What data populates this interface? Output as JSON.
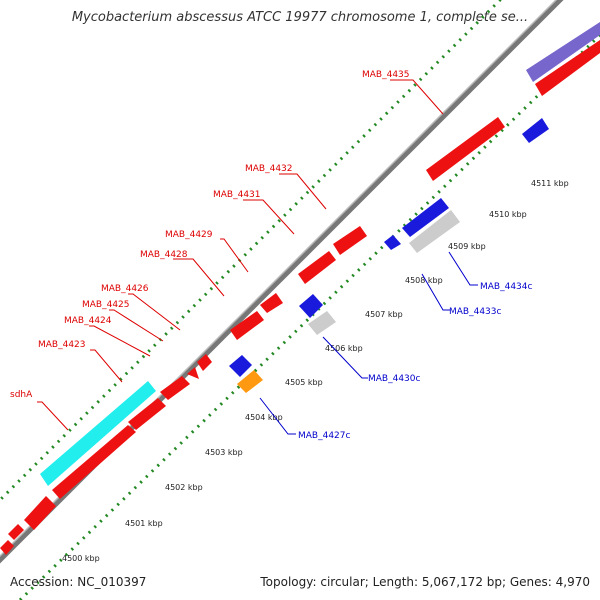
{
  "title": "Mycobacterium abscessus ATCC 19977 chromosome 1, complete se...",
  "accession": "Accession: NC_010397",
  "summary": "Topology: circular; Length: 5,067,172 bp; Genes: 4,970",
  "ticks": [
    "4500 kbp",
    "4501 kbp",
    "4502 kbp",
    "4503 kbp",
    "4504 kbp",
    "4505 kbp",
    "4506 kbp",
    "4507 kbp",
    "4508 kbp",
    "4509 kbp",
    "4510 kbp",
    "4511 kbp"
  ],
  "gene_labels": {
    "sdhA": "sdhA",
    "mab4423": "MAB_4423",
    "mab4424": "MAB_4424",
    "mab4425": "MAB_4425",
    "mab4426": "MAB_4426",
    "mab4428": "MAB_4428",
    "mab4429": "MAB_4429",
    "mab4431": "MAB_4431",
    "mab4432": "MAB_4432",
    "mab4435": "MAB_4435",
    "mab4427c": "MAB_4427c",
    "mab4430c": "MAB_4430c",
    "mab4433c": "MAB_4433c",
    "mab4434c": "MAB_4434c"
  },
  "colors": {
    "forward_cds": "#ee1111",
    "reverse_cds": "#1a1add",
    "rrna_cyan": "#22eeee",
    "orange": "#ff9911",
    "gray": "#cccccc",
    "purple": "#7766cc",
    "forward_label": "#dd0000",
    "reverse_label": "#0000cc",
    "backbone": "#777777",
    "tick_dots": "#228822"
  }
}
